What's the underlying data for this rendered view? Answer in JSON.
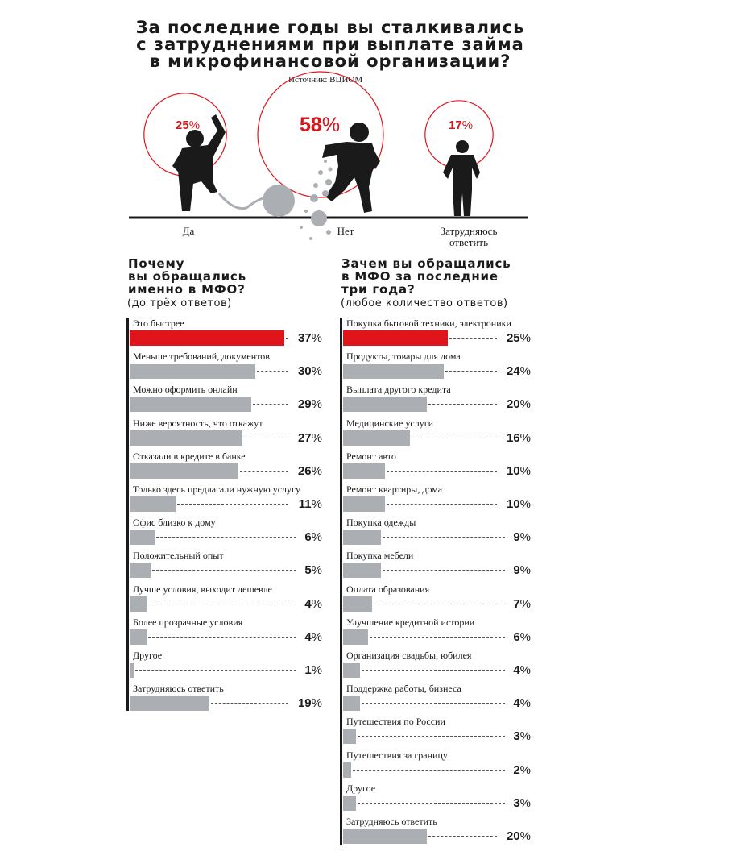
{
  "title_lines": [
    "За последние годы вы сталкивались",
    "с затруднениями при выплате займа",
    "в микрофинансовой организации?"
  ],
  "source": "Источник: ВЦИОМ",
  "answers": [
    {
      "label": "Да",
      "value": "25",
      "symbol": "%"
    },
    {
      "label": "Нет",
      "value": "58",
      "symbol": "%"
    },
    {
      "label": "Затрудняюсь ответить",
      "value": "17",
      "symbol": "%"
    }
  ],
  "colors": {
    "accent": "#e0141b",
    "bar": "#abafb3",
    "text": "#1a1a1a"
  },
  "left_section": {
    "title_lines": [
      "Почему",
      "вы обращались",
      "именно в МФО?"
    ],
    "subtitle": "(до трёх ответов)"
  },
  "right_section": {
    "title_lines": [
      "Зачем вы обращались",
      "в МФО за последние",
      "три года?"
    ],
    "subtitle": "(любое количество ответов)"
  },
  "percent_symbol": "%",
  "chart_data": [
    {
      "type": "pie",
      "title": "За последние годы вы сталкивались с затруднениями при выплате займа в микрофинансовой организации?",
      "categories": [
        "Да",
        "Нет",
        "Затрудняюсь ответить"
      ],
      "values": [
        25,
        58,
        17
      ],
      "highlight": []
    },
    {
      "type": "bar",
      "orientation": "horizontal",
      "title": "Почему вы обращались именно в МФО? (до трёх ответов)",
      "categories": [
        "Это быстрее",
        "Меньше требований, документов",
        "Можно оформить онлайн",
        "Ниже вероятность, что откажут",
        "Отказали в кредите в банке",
        "Только здесь предлагали нужную услугу",
        "Офис близко к дому",
        "Положительный опыт",
        "Лучше условия, выходит дешевле",
        "Более прозрачные условия",
        "Другое",
        "Затрудняюсь ответить"
      ],
      "values": [
        37,
        30,
        29,
        27,
        26,
        11,
        6,
        5,
        4,
        4,
        1,
        19
      ],
      "highlight_index": 0
    },
    {
      "type": "bar",
      "orientation": "horizontal",
      "title": "Зачем вы обращались в МФО за последние три года? (любое количество ответов)",
      "categories": [
        "Покупка бытовой техники, электроники",
        "Продукты, товары для дома",
        "Выплата другого кредита",
        "Медицинские услуги",
        "Ремонт авто",
        "Ремонт квартиры, дома",
        "Покупка одежды",
        "Покупка мебели",
        "Оплата образования",
        "Улучшение кредитной истории",
        "Организация свадьбы, юбилея",
        "Поддержка работы, бизнеса",
        "Путешествия по России",
        "Путешествия за границу",
        "Другое",
        "Затрудняюсь ответить"
      ],
      "values": [
        25,
        24,
        20,
        16,
        10,
        10,
        9,
        9,
        7,
        6,
        4,
        4,
        3,
        2,
        3,
        20
      ],
      "highlight_index": 0
    }
  ]
}
